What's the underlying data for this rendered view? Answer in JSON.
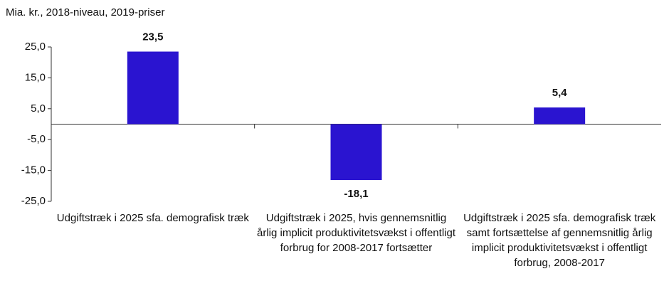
{
  "chart_data": {
    "type": "bar",
    "subtitle": "Mia. kr., 2018-niveau, 2019-priser",
    "categories": [
      "Udgiftstræk i 2025 sfa. demografisk træk",
      "Udgiftstræk i 2025, hvis gennemsnitlig årlig implicit produktivitetsvækst i offentligt forbrug for 2008-2017 fortsætter",
      "Udgiftstræk i 2025 sfa. demografisk træk samt fortsættelse af gennemsnitlig årlig implicit produktivitetsvækst i offentligt forbrug, 2008-2017"
    ],
    "values": [
      23.5,
      -18.1,
      5.4
    ],
    "value_labels": [
      "23,5",
      "-18,1",
      "5,4"
    ],
    "color": "#2a14d0",
    "ylim": [
      -25,
      25
    ],
    "yticks": [
      {
        "value": 25,
        "label": "25,0"
      },
      {
        "value": 15,
        "label": "15,0"
      },
      {
        "value": 5,
        "label": "5,0"
      },
      {
        "value": -5,
        "label": "-5,0"
      },
      {
        "value": -15,
        "label": "-15,0"
      },
      {
        "value": -25,
        "label": "-25,0"
      }
    ],
    "grid": false
  }
}
